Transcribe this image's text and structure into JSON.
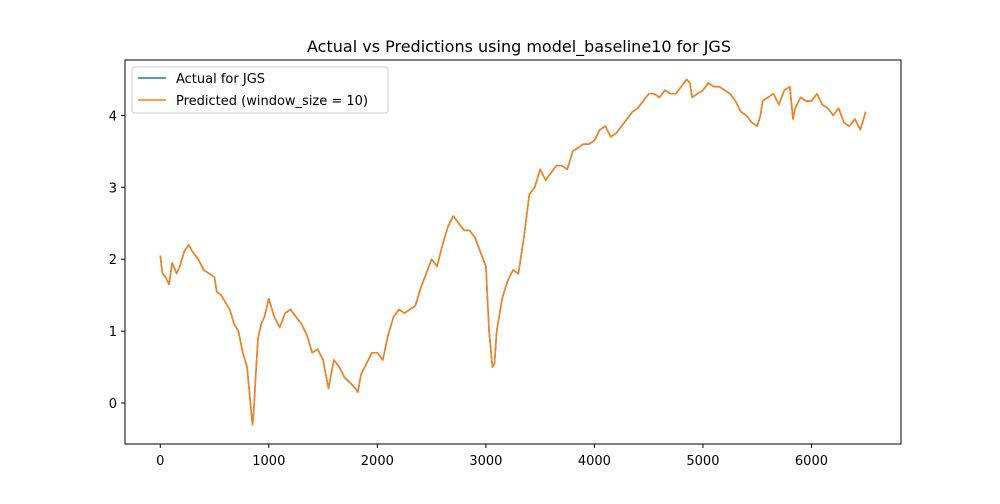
{
  "chart_data": {
    "type": "line",
    "title": "Actual vs Predictions using model_baseline10 for JGS",
    "xlabel": "",
    "ylabel": "",
    "xlim": [
      -325,
      6825
    ],
    "ylim": [
      -0.57,
      4.77
    ],
    "xticks": [
      0,
      1000,
      2000,
      3000,
      4000,
      5000,
      6000
    ],
    "yticks": [
      0,
      1,
      2,
      3,
      4
    ],
    "xtick_labels": [
      "0",
      "1000",
      "2000",
      "3000",
      "4000",
      "5000",
      "6000"
    ],
    "ytick_labels": [
      "0",
      "1",
      "2",
      "3",
      "4"
    ],
    "grid": false,
    "legend_position": "top-left",
    "x": [
      0,
      20,
      50,
      80,
      110,
      150,
      180,
      220,
      260,
      300,
      350,
      400,
      450,
      500,
      520,
      560,
      600,
      640,
      680,
      720,
      760,
      800,
      830,
      850,
      860,
      880,
      900,
      930,
      960,
      1000,
      1050,
      1100,
      1150,
      1200,
      1250,
      1300,
      1350,
      1400,
      1450,
      1500,
      1550,
      1580,
      1600,
      1650,
      1700,
      1750,
      1800,
      1820,
      1850,
      1900,
      1950,
      2000,
      2050,
      2100,
      2150,
      2200,
      2250,
      2300,
      2350,
      2400,
      2450,
      2500,
      2550,
      2600,
      2650,
      2700,
      2750,
      2800,
      2850,
      2900,
      2950,
      3000,
      3030,
      3060,
      3080,
      3100,
      3150,
      3200,
      3250,
      3300,
      3350,
      3400,
      3450,
      3500,
      3550,
      3600,
      3650,
      3700,
      3750,
      3800,
      3850,
      3900,
      3950,
      4000,
      4050,
      4100,
      4150,
      4200,
      4250,
      4300,
      4350,
      4400,
      4450,
      4500,
      4550,
      4600,
      4650,
      4700,
      4750,
      4800,
      4850,
      4880,
      4900,
      4950,
      5000,
      5050,
      5100,
      5150,
      5200,
      5250,
      5300,
      5350,
      5400,
      5450,
      5500,
      5530,
      5550,
      5600,
      5650,
      5700,
      5750,
      5800,
      5830,
      5850,
      5900,
      5950,
      6000,
      6050,
      6100,
      6150,
      6200,
      6250,
      6300,
      6350,
      6400,
      6450,
      6500
    ],
    "series": [
      {
        "name": "Actual for JGS",
        "color": "#1f77b4",
        "values": [
          2.05,
          1.8,
          1.75,
          1.65,
          1.95,
          1.8,
          1.9,
          2.1,
          2.2,
          2.1,
          2.0,
          1.85,
          1.8,
          1.75,
          1.55,
          1.5,
          1.4,
          1.3,
          1.1,
          1.0,
          0.7,
          0.5,
          0.0,
          -0.3,
          -0.15,
          0.4,
          0.9,
          1.1,
          1.2,
          1.45,
          1.2,
          1.05,
          1.25,
          1.3,
          1.2,
          1.1,
          0.95,
          0.7,
          0.75,
          0.6,
          0.2,
          0.45,
          0.6,
          0.5,
          0.35,
          0.28,
          0.2,
          0.15,
          0.4,
          0.55,
          0.7,
          0.7,
          0.6,
          0.95,
          1.2,
          1.3,
          1.25,
          1.3,
          1.35,
          1.6,
          1.8,
          2.0,
          1.9,
          2.2,
          2.45,
          2.6,
          2.5,
          2.4,
          2.4,
          2.3,
          2.1,
          1.9,
          1.0,
          0.5,
          0.55,
          1.0,
          1.45,
          1.7,
          1.85,
          1.8,
          2.3,
          2.9,
          3.0,
          3.25,
          3.1,
          3.2,
          3.3,
          3.3,
          3.25,
          3.5,
          3.55,
          3.6,
          3.6,
          3.65,
          3.8,
          3.85,
          3.7,
          3.75,
          3.85,
          3.95,
          4.05,
          4.1,
          4.2,
          4.3,
          4.3,
          4.25,
          4.35,
          4.3,
          4.3,
          4.4,
          4.5,
          4.45,
          4.25,
          4.3,
          4.35,
          4.45,
          4.4,
          4.4,
          4.35,
          4.3,
          4.2,
          4.05,
          4.0,
          3.9,
          3.85,
          4.0,
          4.2,
          4.25,
          4.3,
          4.15,
          4.35,
          4.4,
          3.95,
          4.1,
          4.25,
          4.2,
          4.2,
          4.3,
          4.15,
          4.1,
          4.0,
          4.1,
          3.9,
          3.85,
          3.95,
          3.8,
          4.05
        ]
      },
      {
        "name": "Predicted (window_size = 10)",
        "color": "#ff7f0e",
        "values": [
          2.05,
          1.8,
          1.75,
          1.65,
          1.95,
          1.8,
          1.9,
          2.1,
          2.2,
          2.1,
          2.0,
          1.85,
          1.8,
          1.75,
          1.55,
          1.5,
          1.4,
          1.3,
          1.1,
          1.0,
          0.7,
          0.5,
          0.0,
          -0.3,
          -0.15,
          0.4,
          0.9,
          1.1,
          1.2,
          1.45,
          1.2,
          1.05,
          1.25,
          1.3,
          1.2,
          1.1,
          0.95,
          0.7,
          0.75,
          0.6,
          0.2,
          0.45,
          0.6,
          0.5,
          0.35,
          0.28,
          0.2,
          0.15,
          0.4,
          0.55,
          0.7,
          0.7,
          0.6,
          0.95,
          1.2,
          1.3,
          1.25,
          1.3,
          1.35,
          1.6,
          1.8,
          2.0,
          1.9,
          2.2,
          2.45,
          2.6,
          2.5,
          2.4,
          2.4,
          2.3,
          2.1,
          1.9,
          1.0,
          0.5,
          0.55,
          1.0,
          1.45,
          1.7,
          1.85,
          1.8,
          2.3,
          2.9,
          3.0,
          3.25,
          3.1,
          3.2,
          3.3,
          3.3,
          3.25,
          3.5,
          3.55,
          3.6,
          3.6,
          3.65,
          3.8,
          3.85,
          3.7,
          3.75,
          3.85,
          3.95,
          4.05,
          4.1,
          4.2,
          4.3,
          4.3,
          4.25,
          4.35,
          4.3,
          4.3,
          4.4,
          4.5,
          4.45,
          4.25,
          4.3,
          4.35,
          4.45,
          4.4,
          4.4,
          4.35,
          4.3,
          4.2,
          4.05,
          4.0,
          3.9,
          3.85,
          4.0,
          4.2,
          4.25,
          4.3,
          4.15,
          4.35,
          4.4,
          3.95,
          4.1,
          4.25,
          4.2,
          4.2,
          4.3,
          4.15,
          4.1,
          4.0,
          4.1,
          3.9,
          3.85,
          3.95,
          3.8,
          4.05
        ]
      }
    ]
  }
}
